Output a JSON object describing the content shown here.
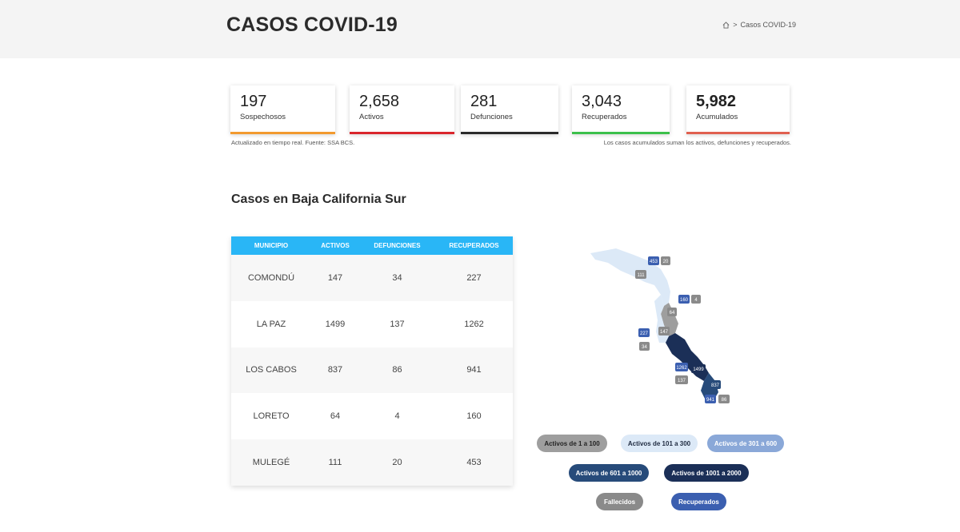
{
  "header": {
    "title": "CASOS COVID-19",
    "breadcrumb": {
      "home_icon": "home-icon",
      "separator": ">",
      "current": "Casos COVID-19"
    }
  },
  "cards": [
    {
      "value": "197",
      "label": "Sospechosos",
      "color": "#f29a2e"
    },
    {
      "value": "2,658",
      "label": "Activos",
      "color": "#d9262c"
    },
    {
      "value": "281",
      "label": "Defunciones",
      "color": "#2b2b2b"
    },
    {
      "value": "3,043",
      "label": "Recuperados",
      "color": "#3cc04b"
    },
    {
      "value": "5,982",
      "label": "Acumulados",
      "color": "#e0604f"
    }
  ],
  "notes": {
    "left": "Actualizado en tiempo real. Fuente: SSA BCS.",
    "right": "Los casos acumulados suman los activos, defunciones y recuperados."
  },
  "section_title": "Casos en Baja California Sur",
  "table": {
    "headers": [
      "MUNICIPIO",
      "ACTIVOS",
      "DEFUNCIONES",
      "RECUPERADOS"
    ],
    "rows": [
      [
        "COMONDÚ",
        "147",
        "34",
        "227"
      ],
      [
        "LA PAZ",
        "1499",
        "137",
        "1262"
      ],
      [
        "LOS CABOS",
        "837",
        "86",
        "941"
      ],
      [
        "LORETO",
        "64",
        "4",
        "160"
      ],
      [
        "MULEGÉ",
        "111",
        "20",
        "453"
      ]
    ]
  },
  "map_badges": {
    "mulege_recuperados": "453",
    "mulege_defunciones": "20",
    "mulege_activos": "111",
    "loreto_recuperados": "160",
    "loreto_defunciones": "4",
    "loreto_activos": "64",
    "comondu_recuperados": "227",
    "comondu_activos": "147",
    "comondu_defunciones": "34",
    "lapaz_recuperados": "1262",
    "lapaz_activos": "1499",
    "lapaz_defunciones": "137",
    "loscabos_activos": "837",
    "loscabos_recuperados": "941",
    "loscabos_defunciones": "86"
  },
  "colors": {
    "range_1_100": "#9e9e9e",
    "range_101_300": "#dce9f7",
    "range_301_600": "#8aa8d8",
    "range_601_1000": "#274b7a",
    "range_1001_2000": "#1b2f57",
    "fallecidos": "#8a8a8a",
    "recuperados": "#3b5fb0"
  },
  "legend": {
    "r1": "Activos de 1 a 100",
    "r2": "Activos de 101 a 300",
    "r3": "Activos de 301 a 600",
    "r4": "Activos de 601 a 1000",
    "r5": "Activos de 1001 a 2000",
    "fallecidos": "Fallecidos",
    "recuperados": "Recuperados"
  }
}
